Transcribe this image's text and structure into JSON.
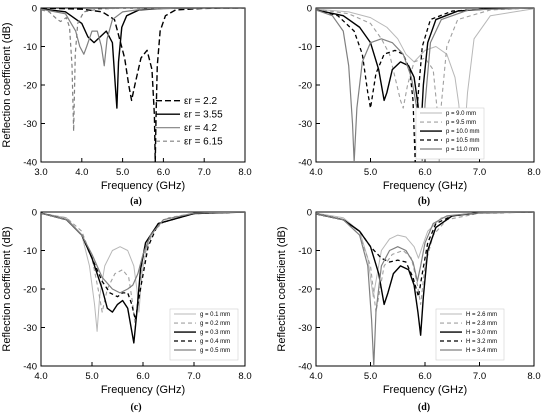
{
  "chart_data": [
    {
      "type": "line",
      "panel": "(a)",
      "xlabel": "Frequency (GHz)",
      "ylabel": "Reflection coefficient (dB)",
      "xlim": [
        3.0,
        8.0
      ],
      "ylim": [
        -40,
        0
      ],
      "xticks": [
        "3.0",
        "4.0",
        "5.0",
        "6.0",
        "7.0",
        "8.0"
      ],
      "yticks": [
        "0",
        "-10",
        "-20",
        "-30",
        "-40"
      ],
      "legend_position": "bottom-right",
      "series": [
        {
          "name": "εr = 2.2",
          "color": "#000000",
          "dash": "6,3",
          "width": 1.4,
          "x": [
            3.0,
            4.0,
            4.5,
            4.8,
            5.05,
            5.15,
            5.22,
            5.3,
            5.45,
            5.6,
            5.72,
            5.78,
            5.8,
            5.82,
            5.85,
            5.92,
            6.05,
            6.3,
            7.0,
            8.0
          ],
          "y": [
            0,
            -0.3,
            -1,
            -3,
            -13,
            -20,
            -24,
            -20,
            -13,
            -11,
            -16,
            -28,
            -40,
            -28,
            -15,
            -6,
            -2,
            -0.5,
            -0.1,
            0
          ]
        },
        {
          "name": "εr = 3.55",
          "color": "#000000",
          "dash": "",
          "width": 1.4,
          "x": [
            3.0,
            3.6,
            4.0,
            4.15,
            4.3,
            4.45,
            4.6,
            4.75,
            4.82,
            4.86,
            4.9,
            4.98,
            5.1,
            5.4,
            6.0,
            7.0,
            8.0
          ],
          "y": [
            -0.2,
            -1,
            -4,
            -7.5,
            -9,
            -7.5,
            -6,
            -9,
            -20,
            -26,
            -14,
            -5,
            -2,
            -0.5,
            -0.1,
            0,
            0
          ]
        },
        {
          "name": "εr = 4.2",
          "color": "#808080",
          "dash": "",
          "width": 1.2,
          "x": [
            3.0,
            3.6,
            3.85,
            3.95,
            4.05,
            4.12,
            4.25,
            4.38,
            4.48,
            4.55,
            4.62,
            4.75,
            5.0,
            5.5,
            6.5,
            8.0
          ],
          "y": [
            -0.3,
            -1.5,
            -6,
            -10,
            -12,
            -10,
            -6,
            -6,
            -10,
            -15,
            -8,
            -3,
            -1,
            -0.3,
            0,
            0
          ]
        },
        {
          "name": "εr = 6.15",
          "color": "#808080",
          "dash": "4,3",
          "width": 1.2,
          "x": [
            3.0,
            3.2,
            3.3,
            3.4,
            3.48,
            3.55,
            3.62,
            3.7,
            3.76,
            3.8,
            3.84,
            3.9,
            4.05,
            4.4,
            5.0,
            6.0,
            8.0
          ],
          "y": [
            -0.5,
            -1,
            -2,
            -3,
            -3.5,
            -3,
            -2.5,
            -5,
            -15,
            -32,
            -12,
            -4,
            -1,
            -0.3,
            0,
            0,
            0
          ]
        }
      ]
    },
    {
      "type": "line",
      "panel": "(b)",
      "xlabel": "Frequency (GHz)",
      "ylabel": "",
      "xlim": [
        4.0,
        8.0
      ],
      "ylim": [
        -40,
        0
      ],
      "xticks": [
        "4.0",
        "5.0",
        "6.0",
        "7.0",
        "8.0"
      ],
      "yticks": [
        "0",
        "-10",
        "-20",
        "-30",
        "-40"
      ],
      "legend_position": "bottom-right",
      "series": [
        {
          "name": "p = 9.0 mm",
          "color": "#b8b8b8",
          "dash": "",
          "width": 1.0,
          "x": [
            4.0,
            4.6,
            5.0,
            5.3,
            5.5,
            5.65,
            5.8,
            6.0,
            6.2,
            6.4,
            6.55,
            6.62,
            6.7,
            6.78,
            6.9,
            7.2,
            8.0
          ],
          "y": [
            -0.3,
            -1,
            -2.5,
            -5,
            -8,
            -12,
            -14,
            -11,
            -10,
            -12,
            -18,
            -25,
            -38,
            -22,
            -8,
            -2,
            -0.2
          ]
        },
        {
          "name": "p = 9.5 mm",
          "color": "#a0a0a0",
          "dash": "4,3",
          "width": 1.1,
          "x": [
            4.0,
            4.6,
            5.0,
            5.2,
            5.35,
            5.45,
            5.55,
            5.6,
            5.68,
            5.8,
            6.0,
            6.15,
            6.22,
            6.26,
            6.3,
            6.4,
            6.6,
            7.2,
            8.0
          ],
          "y": [
            -0.3,
            -1.5,
            -4,
            -8,
            -12,
            -18,
            -24,
            -26,
            -20,
            -14,
            -13,
            -16,
            -26,
            -40,
            -25,
            -10,
            -3,
            -0.5,
            0
          ]
        },
        {
          "name": "p = 10.0 mm",
          "color": "#000000",
          "dash": "",
          "width": 1.4,
          "x": [
            4.0,
            4.5,
            4.8,
            5.0,
            5.15,
            5.25,
            5.3,
            5.4,
            5.55,
            5.7,
            5.8,
            5.87,
            5.92,
            5.97,
            6.05,
            6.2,
            6.6,
            7.2,
            8.0
          ],
          "y": [
            -0.5,
            -2,
            -5,
            -9,
            -16,
            -24,
            -22,
            -16,
            -14,
            -15,
            -18,
            -25,
            -33,
            -20,
            -9,
            -3,
            -0.8,
            -0.2,
            0
          ]
        },
        {
          "name": "p = 10.5 mm",
          "color": "#000000",
          "dash": "4,3",
          "width": 1.3,
          "x": [
            4.0,
            4.4,
            4.7,
            4.85,
            4.95,
            5.0,
            5.1,
            5.25,
            5.45,
            5.6,
            5.72,
            5.78,
            5.82,
            5.86,
            5.95,
            6.1,
            6.5,
            7.2,
            8.0
          ],
          "y": [
            -0.5,
            -2,
            -6,
            -12,
            -22,
            -26,
            -17,
            -12,
            -11,
            -12,
            -16,
            -24,
            -40,
            -25,
            -10,
            -3,
            -0.8,
            -0.2,
            0
          ]
        },
        {
          "name": "p = 11.0 mm",
          "color": "#808080",
          "dash": "",
          "width": 1.2,
          "x": [
            4.0,
            4.3,
            4.5,
            4.6,
            4.67,
            4.7,
            4.75,
            4.85,
            5.0,
            5.2,
            5.4,
            5.6,
            5.75,
            5.85,
            5.92,
            5.95,
            6.0,
            6.1,
            6.3,
            6.8,
            8.0
          ],
          "y": [
            -0.5,
            -2,
            -6,
            -15,
            -30,
            -40,
            -26,
            -14,
            -9,
            -8,
            -9,
            -12,
            -18,
            -26,
            -34,
            -40,
            -25,
            -9,
            -3,
            -0.5,
            0
          ]
        }
      ]
    },
    {
      "type": "line",
      "panel": "(c)",
      "xlabel": "Frequency (GHz)",
      "ylabel": "Reflection coefficient (dB)",
      "xlim": [
        4.0,
        8.0
      ],
      "ylim": [
        -40,
        0
      ],
      "xticks": [
        "4.0",
        "5.0",
        "6.0",
        "7.0",
        "8.0"
      ],
      "yticks": [
        "0",
        "-10",
        "-20",
        "-30",
        "-40"
      ],
      "legend_position": "bottom-right",
      "series": [
        {
          "name": "g = 0.1 mm",
          "color": "#b8b8b8",
          "dash": "",
          "width": 1.0,
          "x": [
            4.0,
            4.5,
            4.8,
            4.95,
            5.05,
            5.1,
            5.15,
            5.25,
            5.4,
            5.55,
            5.7,
            5.82,
            5.88,
            5.92,
            5.98,
            6.1,
            6.4,
            7.0,
            8.0
          ],
          "y": [
            -0.3,
            -1.5,
            -6,
            -14,
            -24,
            -31,
            -22,
            -14,
            -10,
            -9,
            -10,
            -14,
            -20,
            -26,
            -16,
            -7,
            -2,
            -0.3,
            0
          ]
        },
        {
          "name": "g = 0.2 mm",
          "color": "#a0a0a0",
          "dash": "4,3",
          "width": 1.1,
          "x": [
            4.0,
            4.5,
            4.8,
            5.0,
            5.12,
            5.2,
            5.3,
            5.45,
            5.6,
            5.72,
            5.8,
            5.85,
            5.9,
            6.0,
            6.2,
            6.5,
            7.0,
            8.0
          ],
          "y": [
            -0.3,
            -1.5,
            -5,
            -12,
            -20,
            -26,
            -20,
            -16,
            -15,
            -17,
            -24,
            -30,
            -22,
            -12,
            -5,
            -1.5,
            -0.3,
            0
          ]
        },
        {
          "name": "g = 0.3 mm",
          "color": "#000000",
          "dash": "",
          "width": 1.4,
          "x": [
            4.0,
            4.5,
            4.8,
            5.0,
            5.2,
            5.3,
            5.4,
            5.5,
            5.6,
            5.7,
            5.78,
            5.82,
            5.88,
            5.95,
            6.05,
            6.3,
            7.0,
            8.0
          ],
          "y": [
            -0.3,
            -2,
            -6,
            -12,
            -20,
            -25,
            -26,
            -24,
            -23,
            -25,
            -31,
            -34,
            -26,
            -15,
            -8,
            -3,
            -0.4,
            0
          ]
        },
        {
          "name": "g = 0.4 mm",
          "color": "#000000",
          "dash": "4,3",
          "width": 1.3,
          "x": [
            4.0,
            4.5,
            4.8,
            5.0,
            5.2,
            5.35,
            5.5,
            5.6,
            5.7,
            5.78,
            5.85,
            5.95,
            6.1,
            6.3,
            7.0,
            8.0
          ],
          "y": [
            -0.3,
            -2,
            -6,
            -12,
            -18,
            -21,
            -22,
            -21,
            -21,
            -24,
            -28,
            -20,
            -9,
            -3,
            -0.4,
            0
          ]
        },
        {
          "name": "g = 0.5 mm",
          "color": "#808080",
          "dash": "",
          "width": 1.2,
          "x": [
            4.0,
            4.5,
            4.8,
            5.0,
            5.2,
            5.4,
            5.55,
            5.7,
            5.8,
            5.9,
            6.0,
            6.15,
            6.4,
            7.0,
            8.0
          ],
          "y": [
            -0.3,
            -2,
            -6,
            -11,
            -17,
            -20,
            -21,
            -20,
            -19,
            -16,
            -11,
            -6,
            -2,
            -0.3,
            0
          ]
        }
      ]
    },
    {
      "type": "line",
      "panel": "(d)",
      "xlabel": "Frequency (GHz)",
      "ylabel": "Reflection coefficient (dB)",
      "xlim": [
        4.0,
        8.0
      ],
      "ylim": [
        -40,
        0
      ],
      "xticks": [
        "4.0",
        "5.0",
        "6.0",
        "7.0",
        "8.0"
      ],
      "yticks": [
        "0",
        "-10",
        "-20",
        "-30",
        "-40"
      ],
      "legend_position": "bottom-right",
      "series": [
        {
          "name": "H = 2.6 mm",
          "color": "#b8b8b8",
          "dash": "",
          "width": 1.0,
          "x": [
            4.0,
            4.5,
            4.8,
            4.95,
            5.05,
            5.1,
            5.2,
            5.35,
            5.5,
            5.65,
            5.8,
            5.88,
            5.95,
            6.05,
            6.3,
            7.0,
            8.0
          ],
          "y": [
            -0.3,
            -1.5,
            -5,
            -12,
            -22,
            -18,
            -10,
            -7,
            -6,
            -6.5,
            -9,
            -12,
            -9,
            -5,
            -1.5,
            -0.2,
            0
          ]
        },
        {
          "name": "H = 2.8 mm",
          "color": "#a0a0a0",
          "dash": "4,3",
          "width": 1.1,
          "x": [
            4.0,
            4.5,
            4.8,
            5.0,
            5.1,
            5.15,
            5.25,
            5.4,
            5.6,
            5.75,
            5.85,
            5.92,
            6.0,
            6.15,
            6.4,
            7.0,
            8.0
          ],
          "y": [
            -0.3,
            -2,
            -6,
            -14,
            -26,
            -22,
            -14,
            -11,
            -10,
            -12,
            -18,
            -24,
            -14,
            -6,
            -2,
            -0.3,
            0
          ]
        },
        {
          "name": "H = 3.0 mm",
          "color": "#000000",
          "dash": "",
          "width": 1.4,
          "x": [
            4.0,
            4.5,
            4.8,
            5.0,
            5.15,
            5.25,
            5.32,
            5.42,
            5.55,
            5.7,
            5.8,
            5.87,
            5.92,
            5.97,
            6.05,
            6.2,
            6.5,
            7.0,
            8.0
          ],
          "y": [
            -0.5,
            -2,
            -5,
            -9,
            -16,
            -24,
            -21,
            -16,
            -14,
            -15,
            -19,
            -26,
            -32,
            -22,
            -10,
            -4,
            -1,
            -0.2,
            0
          ]
        },
        {
          "name": "H = 3.2 mm",
          "color": "#000000",
          "dash": "4,3",
          "width": 1.3,
          "x": [
            4.0,
            4.5,
            4.8,
            5.0,
            5.2,
            5.35,
            5.5,
            5.65,
            5.78,
            5.88,
            5.95,
            6.05,
            6.2,
            6.5,
            7.0,
            8.0
          ],
          "y": [
            -0.5,
            -2,
            -5,
            -9,
            -12,
            -13,
            -12.5,
            -13,
            -17,
            -22,
            -16,
            -8,
            -3,
            -1,
            -0.2,
            0
          ]
        },
        {
          "name": "H = 3.4 mm",
          "color": "#808080",
          "dash": "",
          "width": 1.2,
          "x": [
            4.0,
            4.5,
            4.8,
            4.95,
            5.02,
            5.06,
            5.1,
            5.2,
            5.35,
            5.5,
            5.65,
            5.78,
            5.86,
            5.92,
            6.0,
            6.15,
            6.4,
            7.0,
            8.0
          ],
          "y": [
            -0.5,
            -2,
            -6,
            -14,
            -28,
            -40,
            -26,
            -14,
            -10,
            -9,
            -10,
            -13,
            -18,
            -14,
            -8,
            -3,
            -1,
            -0.2,
            0
          ]
        }
      ]
    }
  ]
}
